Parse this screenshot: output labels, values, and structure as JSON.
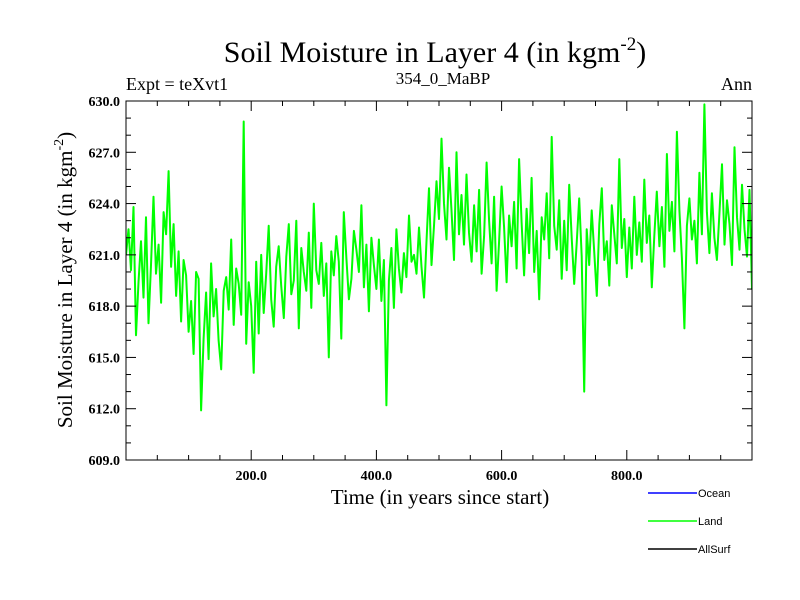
{
  "header": {
    "title_main": "Soil Moisture in Layer 4 (in kgm",
    "title_sup": "-2",
    "title_close": ")",
    "left_label": "Expt = teXvt1",
    "center_label": "354_0_MaBP",
    "right_label": "Ann"
  },
  "axes": {
    "xlabel": "Time (in years since start)",
    "ylabel_main": "Soil Moisture in Layer 4 (in kgm",
    "ylabel_sup": "-2",
    "ylabel_close": ")"
  },
  "legend": {
    "items": [
      {
        "label": "Ocean",
        "color": "#0000ff"
      },
      {
        "label": "Land",
        "color": "#00ff00"
      },
      {
        "label": "AllSurf",
        "color": "#000000"
      }
    ]
  },
  "chart_data": {
    "type": "line",
    "title": "Soil Moisture in Layer 4 (in kgm-2)",
    "xlabel": "Time (in years since start)",
    "ylabel": "Soil Moisture in Layer 4 (in kgm-2)",
    "xlim": [
      0,
      1000
    ],
    "ylim": [
      609,
      630
    ],
    "x_ticks": [
      200,
      400,
      600,
      800
    ],
    "x_tick_labels": [
      "200.0",
      "400.0",
      "600.0",
      "800.0"
    ],
    "y_ticks": [
      609,
      612,
      615,
      618,
      621,
      624,
      627,
      630
    ],
    "y_tick_labels": [
      "609.0",
      "612.0",
      "615.0",
      "618.0",
      "621.0",
      "624.0",
      "627.0",
      "630.0"
    ],
    "series": [
      {
        "name": "Land",
        "color": "#00ff00",
        "x_start": 0,
        "x_step": 4,
        "values": [
          621.0,
          622.5,
          620.1,
          623.8,
          616.3,
          619.4,
          621.8,
          618.5,
          623.2,
          617.0,
          620.4,
          624.4,
          619.9,
          621.6,
          618.2,
          623.5,
          622.2,
          625.9,
          620.3,
          622.8,
          618.6,
          621.2,
          617.1,
          620.7,
          619.8,
          616.5,
          618.3,
          615.2,
          620.0,
          619.6,
          611.9,
          616.1,
          618.8,
          614.9,
          620.5,
          617.4,
          619.0,
          616.0,
          614.3,
          618.9,
          619.7,
          617.8,
          621.9,
          616.9,
          620.2,
          619.3,
          617.5,
          628.8,
          615.8,
          619.4,
          618.0,
          614.1,
          620.6,
          616.4,
          621.0,
          617.6,
          619.9,
          622.7,
          618.4,
          616.8,
          620.3,
          621.5,
          619.2,
          617.3,
          620.9,
          622.8,
          618.7,
          619.5,
          623.0,
          616.7,
          621.4,
          620.0,
          618.9,
          622.3,
          617.9,
          624.0,
          620.1,
          619.3,
          621.7,
          618.6,
          620.5,
          615.0,
          621.2,
          619.8,
          622.1,
          620.6,
          616.1,
          623.5,
          620.8,
          618.4,
          619.6,
          622.4,
          621.3,
          620.0,
          623.9,
          619.1,
          621.6,
          617.7,
          622.0,
          620.4,
          619.0,
          621.9,
          618.3,
          620.7,
          612.2,
          619.5,
          621.4,
          617.9,
          622.5,
          620.2,
          618.8,
          621.1,
          619.7,
          623.3,
          620.6,
          621.0,
          619.9,
          622.6,
          620.3,
          618.5,
          621.8,
          624.9,
          620.4,
          622.7,
          625.3,
          623.1,
          627.8,
          624.0,
          621.9,
          626.1,
          623.6,
          620.7,
          627.0,
          622.2,
          624.5,
          621.6,
          625.7,
          622.3,
          620.6,
          623.9,
          621.2,
          624.8,
          619.9,
          622.1,
          626.4,
          623.0,
          620.5,
          624.4,
          618.9,
          621.8,
          625.0,
          622.6,
          619.4,
          623.3,
          621.5,
          624.1,
          620.2,
          626.6,
          622.9,
          619.8,
          623.7,
          621.1,
          625.5,
          620.0,
          622.4,
          618.4,
          623.2,
          621.9,
          624.6,
          620.8,
          627.9,
          622.7,
          621.3,
          624.2,
          619.6,
          623.0,
          620.1,
          625.1,
          622.0,
          619.3,
          621.7,
          624.3,
          620.9,
          613.0,
          622.5,
          620.4,
          623.6,
          621.2,
          618.6,
          622.8,
          624.9,
          620.7,
          621.8,
          619.2,
          623.9,
          622.2,
          620.5,
          626.6,
          621.4,
          623.1,
          619.7,
          622.6,
          620.2,
          624.4,
          621.0,
          622.9,
          620.6,
          625.4,
          621.7,
          623.3,
          619.1,
          622.1,
          624.7,
          621.5,
          623.8,
          620.3,
          626.9,
          622.4,
          624.1,
          621.2,
          628.2,
          623.6,
          620.8,
          616.7,
          622.7,
          624.3,
          621.9,
          623.0,
          620.5,
          625.8,
          622.2,
          629.8,
          623.5,
          621.1,
          624.6,
          622.0,
          620.7,
          623.4,
          626.3,
          621.6,
          624.2,
          622.8,
          620.4,
          627.3,
          623.2,
          621.3,
          625.1,
          622.5,
          620.9,
          624.8,
          619.0,
          623.7,
          626.4
        ]
      }
    ]
  }
}
